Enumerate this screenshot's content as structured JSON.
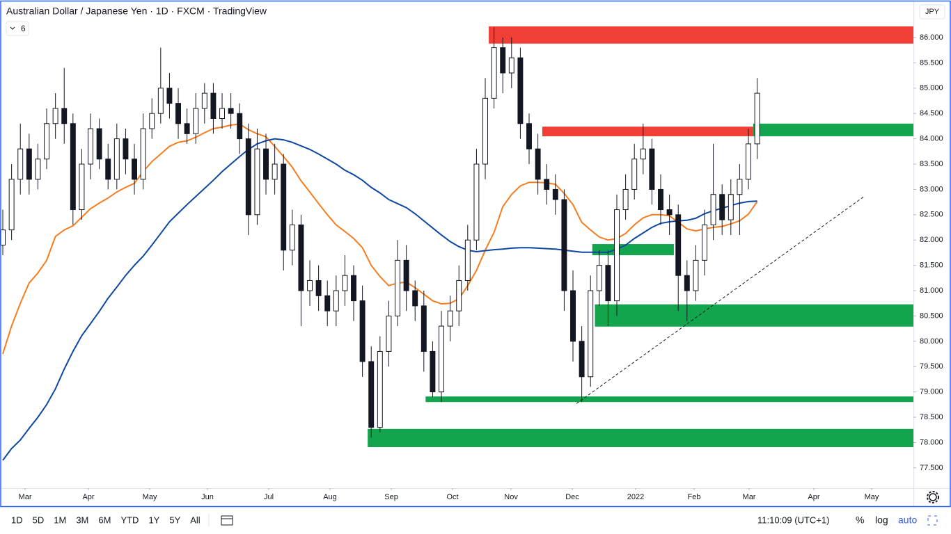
{
  "header": {
    "title": "Australian Dollar / Japanese Yen · 1D · FXCM · TradingView",
    "indicators_badge": "6",
    "currency": "JPY"
  },
  "toolbar": {
    "intervals": [
      "1D",
      "5D",
      "1M",
      "3M",
      "6M",
      "YTD",
      "1Y",
      "5Y",
      "All"
    ],
    "clock": "11:10:09 (UTC+1)",
    "percent": "%",
    "log": "log",
    "auto": "auto"
  },
  "chart_data": {
    "type": "candlestick",
    "color": "#131722",
    "open": [
      81.9,
      82.2,
      83.2,
      83.8,
      83.2,
      83.6,
      84.3,
      84.6,
      84.3,
      82.6,
      83.5,
      84.2,
      83.6,
      83.2,
      84.0,
      83.6,
      83.2,
      84.2,
      84.5,
      85.0,
      84.7,
      84.3,
      84.1,
      84.6,
      84.9,
      84.4,
      84.6,
      84.5,
      84.0,
      82.5,
      83.8,
      83.2,
      83.5,
      81.8,
      82.3,
      81.0,
      81.2,
      80.9,
      80.6,
      81.0,
      81.3,
      80.8,
      79.6,
      78.3,
      79.8,
      80.5,
      81.6,
      81.0,
      80.7,
      79.8,
      79.0,
      80.3,
      80.6,
      81.2,
      82.0,
      83.5,
      84.8,
      85.8,
      85.3,
      85.6,
      84.3,
      83.8,
      83.2,
      83.0,
      82.8,
      81.0,
      80.0,
      79.3,
      81.0,
      81.5,
      80.8,
      82.6,
      83.0,
      83.6,
      83.8,
      83.0,
      82.6,
      82.5,
      81.3,
      81.0,
      81.6,
      82.3,
      82.9,
      82.4,
      82.9,
      83.2,
      83.9
    ],
    "high": [
      82.6,
      83.5,
      84.3,
      84.1,
      83.9,
      84.6,
      84.9,
      85.4,
      84.5,
      83.8,
      84.5,
      84.4,
      83.9,
      84.3,
      84.2,
      83.9,
      84.5,
      84.8,
      85.8,
      85.3,
      85.0,
      84.6,
      84.9,
      85.1,
      85.1,
      84.9,
      84.9,
      84.7,
      84.3,
      84.2,
      84.1,
      83.9,
      83.7,
      82.6,
      82.5,
      81.6,
      81.5,
      81.2,
      81.3,
      81.7,
      81.5,
      81.1,
      79.9,
      80.1,
      80.8,
      82.0,
      81.9,
      81.2,
      81.0,
      80.0,
      80.6,
      80.9,
      81.5,
      82.3,
      83.8,
      85.2,
      86.2,
      86.0,
      86.0,
      85.8,
      84.5,
      84.1,
      83.5,
      83.3,
      83.0,
      81.4,
      80.3,
      81.3,
      81.8,
      81.8,
      82.9,
      83.3,
      83.9,
      84.3,
      84.0,
      83.3,
      82.9,
      82.7,
      81.6,
      81.9,
      82.6,
      83.9,
      83.1,
      83.2,
      83.5,
      84.2,
      85.2
    ],
    "low": [
      81.7,
      82.0,
      82.9,
      82.9,
      83.0,
      83.4,
      84.0,
      83.9,
      82.3,
      82.4,
      83.2,
      83.4,
      83.0,
      83.0,
      83.3,
      82.9,
      83.0,
      84.0,
      84.3,
      84.4,
      84.0,
      83.9,
      83.9,
      84.3,
      84.1,
      84.2,
      84.2,
      83.7,
      82.1,
      82.3,
      82.9,
      82.9,
      81.4,
      81.5,
      80.3,
      80.7,
      80.6,
      80.3,
      80.3,
      80.7,
      80.4,
      79.3,
      78.1,
      78.2,
      79.5,
      80.3,
      80.6,
      80.4,
      79.4,
      78.9,
      78.8,
      80.0,
      80.3,
      81.0,
      81.8,
      83.2,
      84.6,
      84.9,
      85.0,
      84.0,
      83.5,
      82.9,
      82.7,
      82.5,
      80.6,
      79.6,
      78.8,
      79.1,
      80.7,
      80.3,
      80.5,
      82.4,
      82.8,
      83.3,
      82.7,
      82.3,
      82.1,
      80.6,
      80.4,
      80.8,
      81.3,
      82.0,
      82.1,
      82.1,
      82.1,
      83.0,
      83.6
    ],
    "close": [
      82.2,
      83.2,
      83.8,
      83.2,
      83.6,
      84.3,
      84.6,
      84.3,
      82.6,
      83.5,
      84.2,
      83.6,
      83.2,
      84.0,
      83.6,
      83.2,
      84.2,
      84.5,
      85.0,
      84.7,
      84.3,
      84.1,
      84.6,
      84.9,
      84.4,
      84.6,
      84.5,
      84.0,
      82.5,
      83.8,
      83.2,
      83.5,
      81.8,
      82.3,
      81.0,
      81.2,
      80.9,
      80.6,
      81.0,
      81.3,
      80.8,
      79.6,
      78.3,
      79.8,
      80.5,
      81.6,
      81.0,
      80.7,
      79.8,
      79.0,
      80.3,
      80.6,
      81.2,
      82.0,
      83.5,
      84.8,
      85.8,
      85.3,
      85.6,
      84.3,
      83.8,
      83.2,
      83.0,
      82.8,
      81.0,
      80.0,
      79.3,
      81.0,
      81.5,
      80.8,
      82.6,
      83.0,
      83.6,
      83.8,
      83.0,
      82.6,
      82.5,
      81.3,
      81.0,
      81.6,
      82.3,
      82.9,
      82.4,
      82.9,
      83.2,
      83.9,
      84.9
    ],
    "series": [
      {
        "color": "#f57c1f",
        "values": [
          79.75,
          80.3,
          80.75,
          81.15,
          81.35,
          81.6,
          82.07,
          82.2,
          82.28,
          82.45,
          82.62,
          82.73,
          82.83,
          82.95,
          83.04,
          83.12,
          83.35,
          83.55,
          83.7,
          83.85,
          83.93,
          83.96,
          84.03,
          84.12,
          84.2,
          84.23,
          84.27,
          84.29,
          84.18,
          84.1,
          84.04,
          83.85,
          83.65,
          83.44,
          83.17,
          82.95,
          82.72,
          82.5,
          82.3,
          82.17,
          82.03,
          81.85,
          81.5,
          81.28,
          81.1,
          81.15,
          81.17,
          81.06,
          80.93,
          80.8,
          80.74,
          80.75,
          80.84,
          81.1,
          81.4,
          81.8,
          82.15,
          82.66,
          82.9,
          83.07,
          83.14,
          83.14,
          83.13,
          83.1,
          82.92,
          82.7,
          82.35,
          82.2,
          82.06,
          82.0,
          82.03,
          82.13,
          82.3,
          82.44,
          82.5,
          82.5,
          82.48,
          82.35,
          82.22,
          82.18,
          82.22,
          82.25,
          82.27,
          82.32,
          82.38,
          82.51,
          82.76
        ]
      },
      {
        "color": "#0d47a1",
        "values": [
          77.65,
          77.88,
          78.05,
          78.28,
          78.5,
          78.75,
          79.06,
          79.45,
          79.8,
          80.11,
          80.35,
          80.59,
          80.85,
          81.07,
          81.3,
          81.5,
          81.68,
          81.9,
          82.13,
          82.36,
          82.53,
          82.7,
          82.86,
          83.02,
          83.18,
          83.35,
          83.5,
          83.65,
          83.79,
          83.9,
          83.96,
          84.0,
          83.98,
          83.93,
          83.86,
          83.79,
          83.7,
          83.6,
          83.5,
          83.38,
          83.29,
          83.18,
          83.04,
          82.93,
          82.8,
          82.72,
          82.64,
          82.52,
          82.38,
          82.24,
          82.1,
          81.97,
          81.87,
          81.8,
          81.77,
          81.79,
          81.81,
          81.82,
          81.84,
          81.85,
          81.85,
          81.84,
          81.83,
          81.82,
          81.8,
          81.78,
          81.76,
          81.76,
          81.76,
          81.76,
          81.82,
          81.9,
          82.03,
          82.14,
          82.25,
          82.33,
          82.36,
          82.38,
          82.39,
          82.43,
          82.52,
          82.58,
          82.63,
          82.68,
          82.73,
          82.76,
          82.77
        ]
      }
    ],
    "zones": [
      {
        "color": "#f23f36",
        "x": [
          55.4,
          103.81
        ],
        "y": [
          85.88,
          86.22
        ]
      },
      {
        "color": "#f23f36",
        "x": [
          61.5,
          85.55
        ],
        "y": [
          84.05,
          84.24
        ]
      },
      {
        "color": "#13a54e",
        "x": [
          85.55,
          103.81
        ],
        "y": [
          84.05,
          84.3
        ]
      },
      {
        "color": "#13a54e",
        "x": [
          67.2,
          76.5
        ],
        "y": [
          81.7,
          81.92
        ]
      },
      {
        "color": "#13a54e",
        "x": [
          67.5,
          103.81
        ],
        "y": [
          80.29,
          80.73
        ]
      },
      {
        "color": "#13a54e",
        "x": [
          48.2,
          103.81
        ],
        "y": [
          78.8,
          78.91
        ]
      },
      {
        "color": "#13a54e",
        "x": [
          41.6,
          103.81
        ],
        "y": [
          77.91,
          78.27
        ]
      }
    ],
    "trendline": {
      "x": [
        65.4,
        98.1
      ],
      "y": [
        78.77,
        82.85
      ]
    },
    "xlim": [
      -0.32,
      103.81
    ],
    "ylim": [
      77.1,
      86.714
    ],
    "xticks": [
      {
        "value": 2.54,
        "label": "Mar"
      },
      {
        "value": 9.76,
        "label": "Apr"
      },
      {
        "value": 16.75,
        "label": "May"
      },
      {
        "value": 23.33,
        "label": "Jun"
      },
      {
        "value": 30.32,
        "label": "Jul"
      },
      {
        "value": 37.3,
        "label": "Aug"
      },
      {
        "value": 44.29,
        "label": "Sep"
      },
      {
        "value": 51.27,
        "label": "Oct"
      },
      {
        "value": 57.94,
        "label": "Nov"
      },
      {
        "value": 64.92,
        "label": "Dec"
      },
      {
        "value": 72.14,
        "label": "2022"
      },
      {
        "value": 78.81,
        "label": "Feb"
      },
      {
        "value": 85.08,
        "label": "Mar"
      },
      {
        "value": 92.46,
        "label": "Apr"
      },
      {
        "value": 99.05,
        "label": "May"
      }
    ],
    "yticks": [
      {
        "value": 77.5,
        "label": "77.500"
      },
      {
        "value": 78,
        "label": "78.000"
      },
      {
        "value": 78.5,
        "label": "78.500"
      },
      {
        "value": 79,
        "label": "79.000"
      },
      {
        "value": 79.5,
        "label": "79.500"
      },
      {
        "value": 80,
        "label": "80.000"
      },
      {
        "value": 80.5,
        "label": "80.500"
      },
      {
        "value": 81,
        "label": "81.000"
      },
      {
        "value": 81.5,
        "label": "81.500"
      },
      {
        "value": 82,
        "label": "82.000"
      },
      {
        "value": 82.5,
        "label": "82.500"
      },
      {
        "value": 83,
        "label": "83.000"
      },
      {
        "value": 83.5,
        "label": "83.500"
      },
      {
        "value": 84,
        "label": "84.000"
      },
      {
        "value": 84.5,
        "label": "84.500"
      },
      {
        "value": 85,
        "label": "85.000"
      },
      {
        "value": 85.5,
        "label": "85.500"
      },
      {
        "value": 86,
        "label": "86.000"
      }
    ]
  }
}
